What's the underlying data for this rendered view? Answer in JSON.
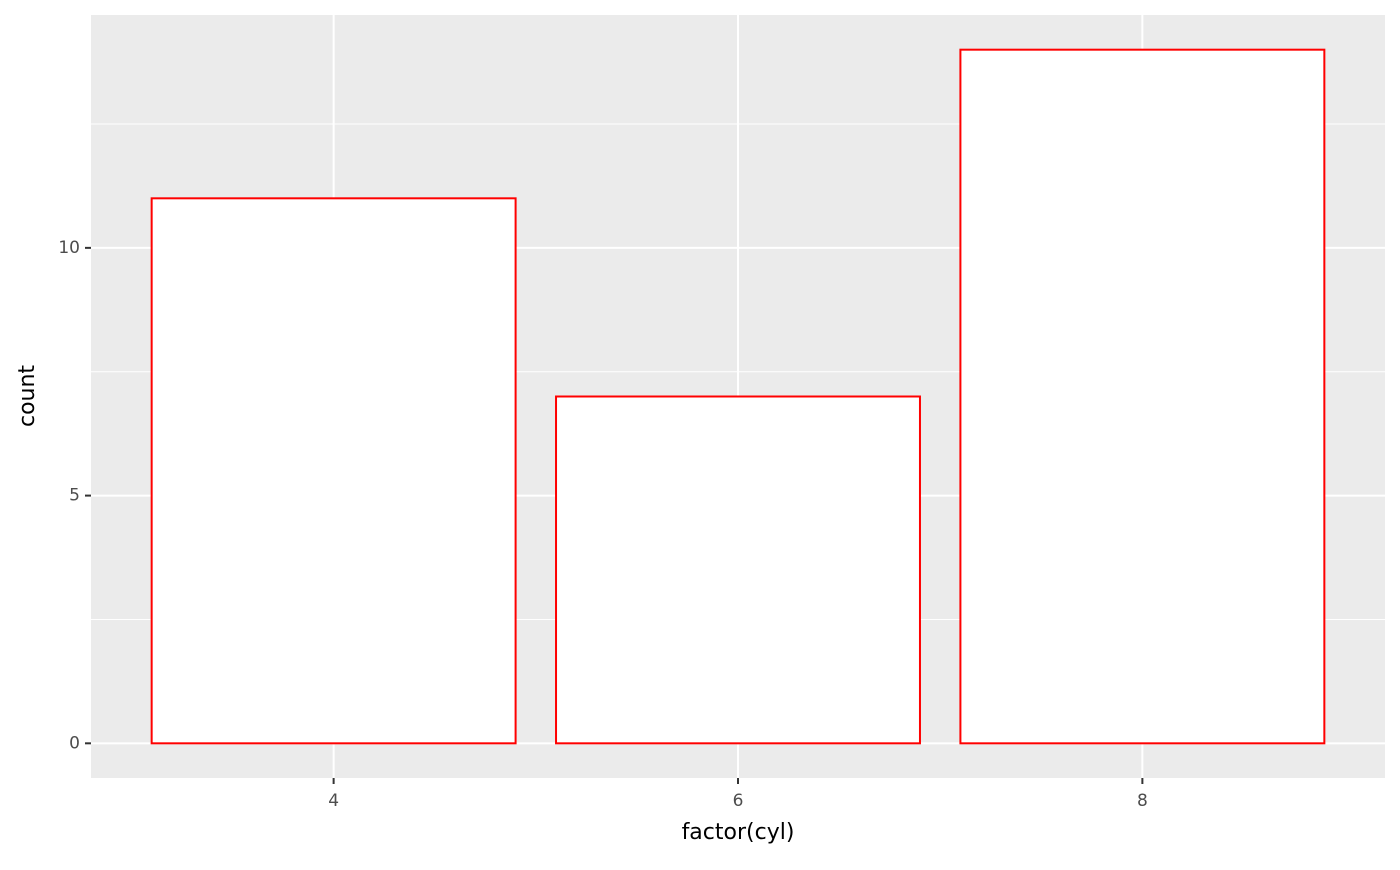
{
  "chart_data": {
    "type": "bar",
    "x_label": "factor(cyl)",
    "y_label": "count",
    "categories": [
      "4",
      "6",
      "8"
    ],
    "values": [
      11,
      7,
      14
    ],
    "color": "#ffffff",
    "edge_color": "#ff0000",
    "ylim": [
      -0.7,
      14.7
    ],
    "yticks": [
      0,
      5,
      10
    ],
    "y_minor_ticks": [
      2.5,
      7.5,
      12.5
    ],
    "grid": true,
    "panel_color": "#ebebeb"
  }
}
